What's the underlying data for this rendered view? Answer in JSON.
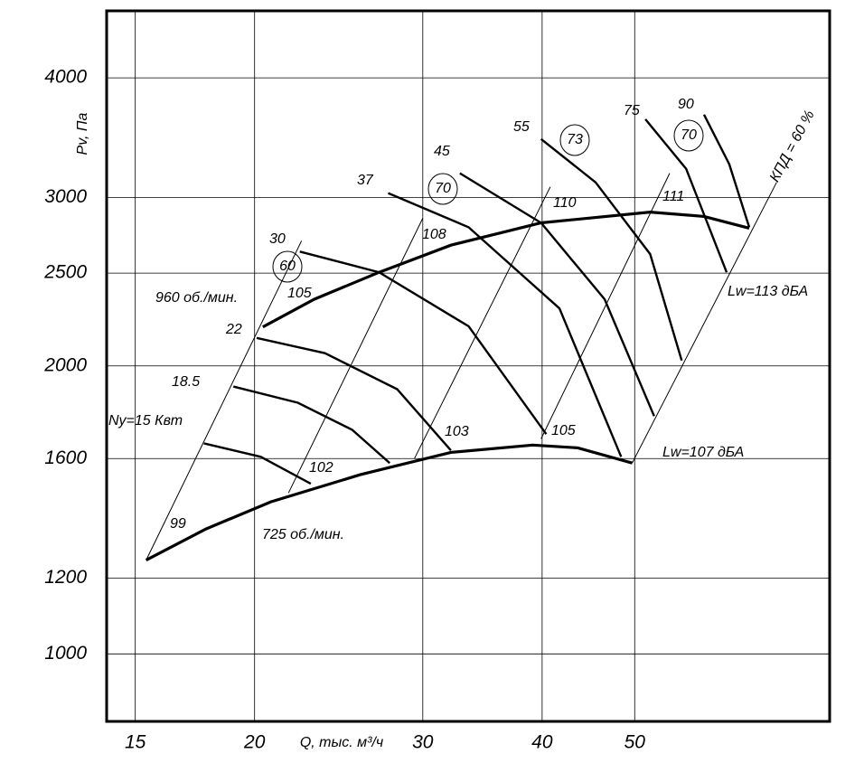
{
  "chart_data": {
    "type": "line",
    "x_label": "Q, тыс. м³/ч",
    "y_label": "Pv, Па",
    "log_x": true,
    "log_y": true,
    "grid": true,
    "color": "#000000",
    "xlim": [
      14,
      80
    ],
    "ylim": [
      850,
      4700
    ],
    "xticks": [
      15,
      20,
      30,
      40,
      50
    ],
    "yticks": [
      1000,
      1200,
      1600,
      2000,
      2500,
      3000,
      4000
    ],
    "series": [
      {
        "name": "960 об./мин.",
        "style": "thick",
        "x": [
          20.4,
          23.1,
          27.0,
          32.1,
          39.9,
          51.9,
          59.1,
          65.9
        ],
        "values": [
          2196,
          2348,
          2505,
          2674,
          2822,
          2896,
          2866,
          2786
        ]
      },
      {
        "name": "725 об./мин.",
        "style": "thick",
        "x": [
          15.4,
          17.8,
          20.8,
          25.8,
          32.1,
          39.1,
          43.6,
          49.7
        ],
        "values": [
          1253,
          1351,
          1442,
          1539,
          1624,
          1653,
          1642,
          1583
        ]
      },
      {
        "name": "Ny=15 Квт",
        "style": "medium",
        "x": [
          17.7,
          20.3,
          22.9
        ],
        "values": [
          1660,
          1607,
          1506
        ]
      },
      {
        "name": "18.5",
        "style": "medium",
        "x": [
          19.0,
          22.2,
          25.3,
          27.7
        ],
        "values": [
          1903,
          1830,
          1715,
          1583
        ]
      },
      {
        "name": "22",
        "style": "medium",
        "x": [
          20.1,
          23.7,
          28.2,
          32.1
        ],
        "values": [
          2139,
          2062,
          1891,
          1632
        ]
      },
      {
        "name": "30",
        "style": "medium",
        "x": [
          22.3,
          27.0,
          33.5,
          40.4
        ],
        "values": [
          2633,
          2505,
          2200,
          1697
        ]
      },
      {
        "name": "37",
        "style": "medium",
        "x": [
          27.6,
          33.5,
          41.7,
          48.4
        ],
        "values": [
          3031,
          2792,
          2297,
          1607
        ]
      },
      {
        "name": "45",
        "style": "medium",
        "x": [
          32.8,
          39.9,
          46.5,
          52.4
        ],
        "values": [
          3180,
          2822,
          2348,
          1772
        ]
      },
      {
        "name": "55",
        "style": "medium",
        "x": [
          39.9,
          45.5,
          51.9,
          56.0
        ],
        "values": [
          3452,
          3111,
          2617,
          2026
        ]
      },
      {
        "name": "75",
        "style": "medium",
        "x": [
          51.3,
          56.6,
          62.4
        ],
        "values": [
          3621,
          3214,
          2505
        ]
      },
      {
        "name": "90",
        "style": "medium",
        "x": [
          59.1,
          62.8,
          65.9
        ],
        "values": [
          3661,
          3250,
          2792
        ]
      },
      {
        "name": "60",
        "style": "thin",
        "x": [
          15.4,
          22.4
        ],
        "values": [
          1253,
          2703
        ]
      },
      {
        "name": "70",
        "style": "thin",
        "x": [
          21.7,
          30.0
        ],
        "values": [
          1473,
          2853
        ]
      },
      {
        "name": "73",
        "style": "thin",
        "x": [
          29.4,
          40.8
        ],
        "values": [
          1600,
          3077
        ]
      },
      {
        "name": "70",
        "style": "thin",
        "x": [
          39.9,
          54.4
        ],
        "values": [
          1678,
          3180
        ]
      },
      {
        "name": "КПД = 60 %",
        "style": "thin",
        "x": [
          49.7,
          70.4
        ],
        "values": [
          1583,
          3111
        ]
      }
    ],
    "annotations": [
      "Lw=113 дБА",
      "Lw=107 дБА"
    ],
    "sound_levels": [
      99,
      102,
      103,
      105,
      105,
      108,
      110,
      111
    ]
  }
}
